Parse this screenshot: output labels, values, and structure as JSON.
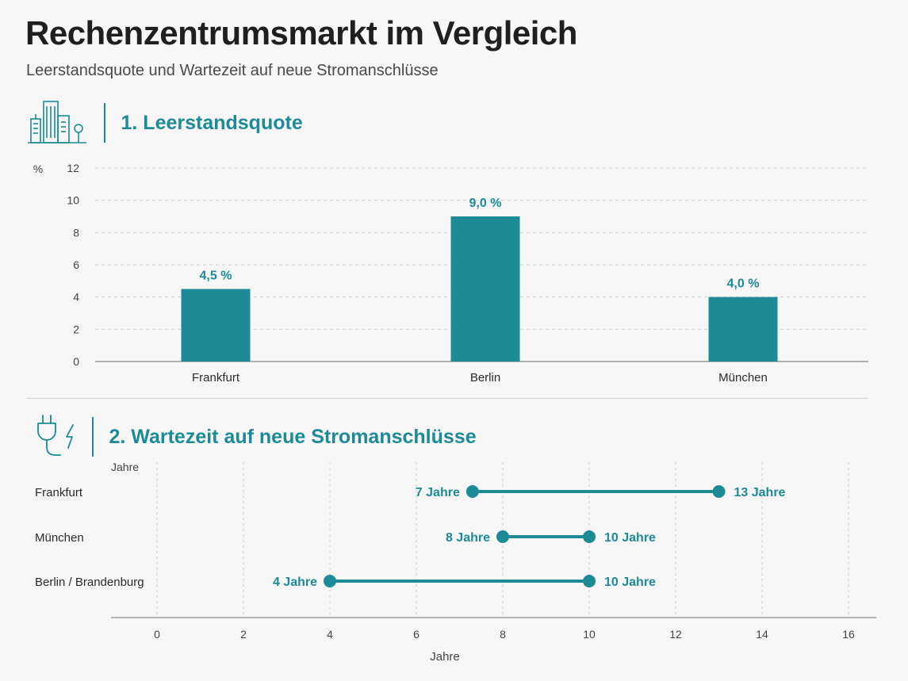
{
  "header": {
    "title": "Rechenzentrumsmarkt im Vergleich",
    "subtitle": "Leerstandsquote und Wartezeit auf neue Stromanschlüsse"
  },
  "sections": [
    {
      "title": "1. Leerstandsquote",
      "icon": "buildings-icon"
    },
    {
      "title": "2. Wartezeit auf neue Stromanschlüsse",
      "icon": "power-plug-icon"
    }
  ],
  "colors": {
    "accent": "#1c8b96",
    "grid": "#cfcfcf",
    "text": "#2b2b2b"
  },
  "chart_data": [
    {
      "type": "bar",
      "title": "1. Leerstandsquote",
      "ylabel": "%",
      "ylim": [
        0,
        12
      ],
      "yticks": [
        0,
        2,
        4,
        6,
        8,
        10,
        12
      ],
      "categories": [
        "Frankfurt",
        "Berlin",
        "München"
      ],
      "values": [
        4.5,
        9.0,
        4.0
      ],
      "data_labels": [
        "4,5 %",
        "9,0 %",
        "4,0 %"
      ],
      "grid": true
    },
    {
      "type": "range",
      "title": "2. Wartezeit auf neue Stromanschlüsse",
      "top_label": "Jahre",
      "xlabel": "Jahre",
      "xlim": [
        -1,
        16
      ],
      "xticks": [
        0,
        2,
        4,
        6,
        8,
        10,
        12,
        14,
        16
      ],
      "categories": [
        "Frankfurt",
        "München",
        "Berlin / Brandenburg"
      ],
      "ranges": [
        {
          "start": 7.3,
          "end": 13,
          "start_label": "7 Jahre",
          "end_label": "13 Jahre"
        },
        {
          "start": 8,
          "end": 10,
          "start_label": "8 Jahre",
          "end_label": "10 Jahre"
        },
        {
          "start": 4,
          "end": 10,
          "start_label": "4 Jahre",
          "end_label": "10 Jahre"
        }
      ],
      "grid": true
    }
  ]
}
